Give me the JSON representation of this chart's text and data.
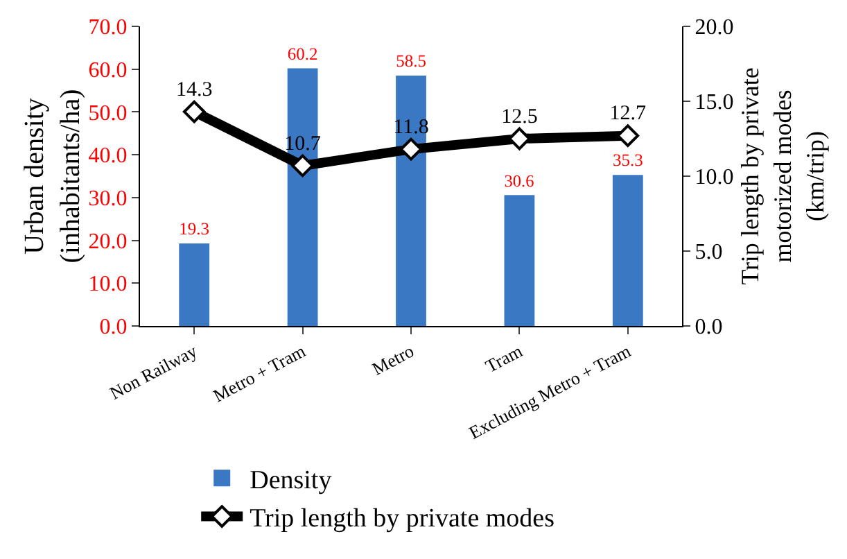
{
  "chart_data": {
    "type": "bar",
    "categories": [
      "Non Railway",
      "Metro + Tram",
      "Metro",
      "Tram",
      "Excluding Metro + Tram"
    ],
    "ylabel": "Urban density (inhabitants/ha)",
    "y2label": "Trip length by private motorized modes (km/trip)",
    "ylim": [
      0,
      70
    ],
    "yticks": [
      {
        "value": 0,
        "label": "0.0"
      },
      {
        "value": 10,
        "label": "10.0"
      },
      {
        "value": 20,
        "label": "20.0"
      },
      {
        "value": 30,
        "label": "30.0"
      },
      {
        "value": 40,
        "label": "40.0"
      },
      {
        "value": 50,
        "label": "50.0"
      },
      {
        "value": 60,
        "label": "60.0"
      },
      {
        "value": 70,
        "label": "70.0"
      }
    ],
    "y2lim": [
      0,
      20
    ],
    "y2ticks": [
      {
        "value": 0,
        "label": "0.0"
      },
      {
        "value": 5,
        "label": "5.0"
      },
      {
        "value": 10,
        "label": "10.0"
      },
      {
        "value": 15,
        "label": "15.0"
      },
      {
        "value": 20,
        "label": "20.0"
      }
    ],
    "series": [
      {
        "name": "Density",
        "color": "#3b78c3",
        "values": [
          19.3,
          60.2,
          58.5,
          30.6,
          35.3
        ]
      },
      {
        "name": "Trip length by private modes",
        "type": "line",
        "axis": "y2",
        "color": "#000000",
        "marker": "diamond",
        "line_style": "solid",
        "values": [
          14.3,
          10.7,
          11.8,
          12.5,
          12.7
        ]
      }
    ],
    "data_labels": true,
    "grid": false,
    "legend": "bottom"
  }
}
